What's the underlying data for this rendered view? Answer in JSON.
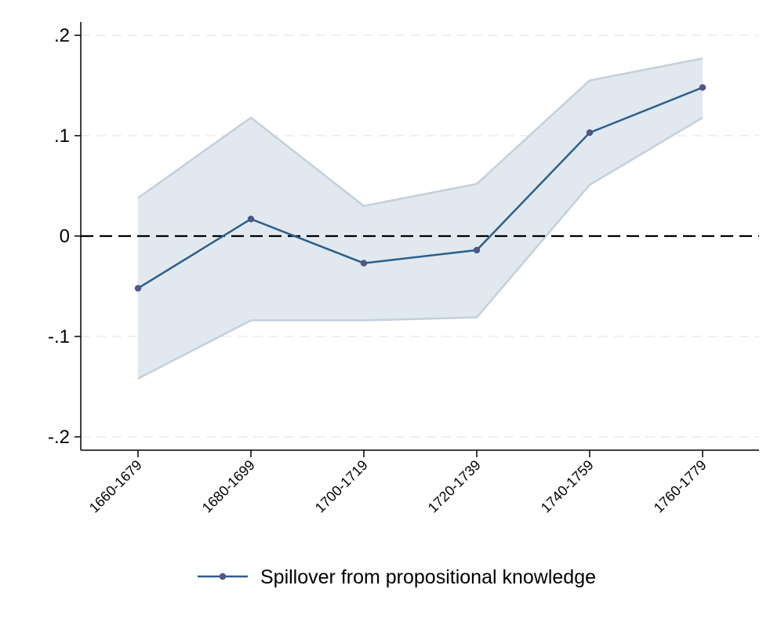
{
  "chart_data": {
    "type": "line",
    "title": "",
    "xlabel": "",
    "ylabel": "",
    "categories": [
      "1660-1679",
      "1680-1699",
      "1700-1719",
      "1720-1739",
      "1740-1759",
      "1760-1779"
    ],
    "series": [
      {
        "name": "Spillover from propositional knowledge",
        "values": [
          -0.052,
          0.017,
          -0.027,
          -0.014,
          0.103,
          0.148
        ],
        "ci_upper": [
          0.038,
          0.118,
          0.03,
          0.052,
          0.155,
          0.177
        ],
        "ci_lower": [
          -0.142,
          -0.084,
          -0.084,
          -0.081,
          0.051,
          0.118
        ],
        "color": "#2d5f8b",
        "marker_color": "#6a4c86"
      }
    ],
    "ylim": [
      -0.2,
      0.2
    ],
    "yticks": [
      -0.2,
      -0.1,
      0,
      0.1,
      0.2
    ],
    "ytick_labels": [
      "-.2",
      "-.1",
      "0",
      ".1",
      ".2"
    ],
    "reference_line": {
      "y": 0,
      "style": "dashed",
      "color": "#000000"
    },
    "ci_fill_color": "#e1e8ef",
    "ci_edge_color": "#c3d0dc",
    "grid": true,
    "grid_color": "#e6e6e6",
    "legend": {
      "position": "bottom"
    }
  }
}
